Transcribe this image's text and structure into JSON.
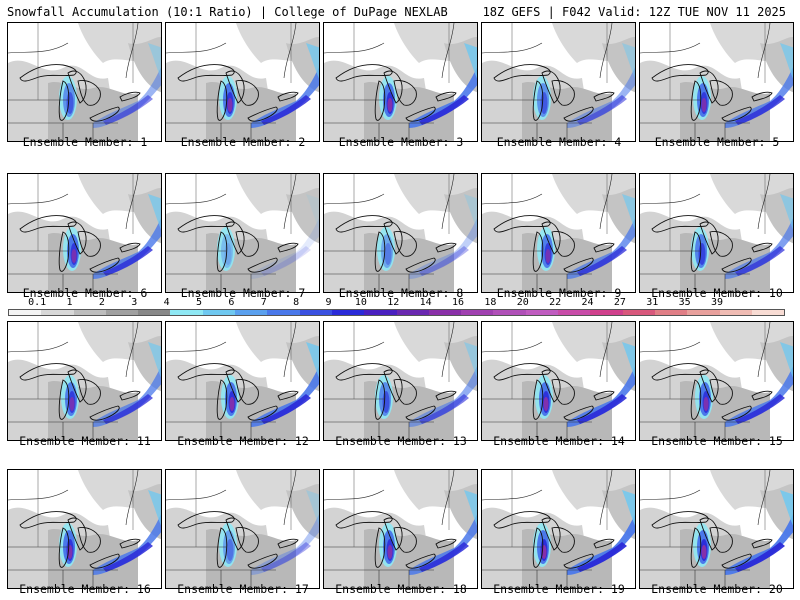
{
  "header": {
    "left_title": "Snowfall Accumulation (10:1 Ratio) | College of DuPage NEXLAB",
    "right_title": "18Z GEFS | F042 Valid: 12Z TUE NOV 11 2025"
  },
  "panels": [
    {
      "label": "Ensemble Member: 1",
      "intensity": 0.55
    },
    {
      "label": "Ensemble Member: 2",
      "intensity": 0.85
    },
    {
      "label": "Ensemble Member: 3",
      "intensity": 0.9
    },
    {
      "label": "Ensemble Member: 4",
      "intensity": 0.55
    },
    {
      "label": "Ensemble Member: 5",
      "intensity": 0.8
    },
    {
      "label": "Ensemble Member: 6",
      "intensity": 0.8
    },
    {
      "label": "Ensemble Member: 7",
      "intensity": 0.15
    },
    {
      "label": "Ensemble Member: 8",
      "intensity": 0.35
    },
    {
      "label": "Ensemble Member: 9",
      "intensity": 0.75
    },
    {
      "label": "Ensemble Member: 10",
      "intensity": 0.7
    },
    {
      "label": "Ensemble Member: 11",
      "intensity": 0.75
    },
    {
      "label": "Ensemble Member: 12",
      "intensity": 0.9
    },
    {
      "label": "Ensemble Member: 13",
      "intensity": 0.6
    },
    {
      "label": "Ensemble Member: 14",
      "intensity": 0.9
    },
    {
      "label": "Ensemble Member: 15",
      "intensity": 0.85
    },
    {
      "label": "Ensemble Member: 16",
      "intensity": 0.85
    },
    {
      "label": "Ensemble Member: 17",
      "intensity": 0.4
    },
    {
      "label": "Ensemble Member: 18",
      "intensity": 0.85
    },
    {
      "label": "Ensemble Member: 19",
      "intensity": 0.95
    },
    {
      "label": "Ensemble Member: 20",
      "intensity": 0.95
    }
  ],
  "legend": {
    "ticks": [
      "0.1",
      "1",
      "2",
      "3",
      "4",
      "5",
      "6",
      "7",
      "8",
      "9",
      "10",
      "12",
      "14",
      "16",
      "18",
      "20",
      "22",
      "24",
      "27",
      "31",
      "35",
      "39"
    ],
    "colors": [
      "#f4f4f4",
      "#d8d8d8",
      "#bdbdbd",
      "#a0a0a0",
      "#888888",
      "#8fe8f4",
      "#6fc8f0",
      "#5aa0ee",
      "#4a78ea",
      "#3a50e0",
      "#2a2ad8",
      "#4a20c0",
      "#6a28b0",
      "#8a30a8",
      "#a040b0",
      "#b050b8",
      "#c05cc0",
      "#c84ca8",
      "#d0408c",
      "#d8587c",
      "#e07e86",
      "#e8a09c",
      "#f0bcb4",
      "#f8dcd4"
    ]
  }
}
